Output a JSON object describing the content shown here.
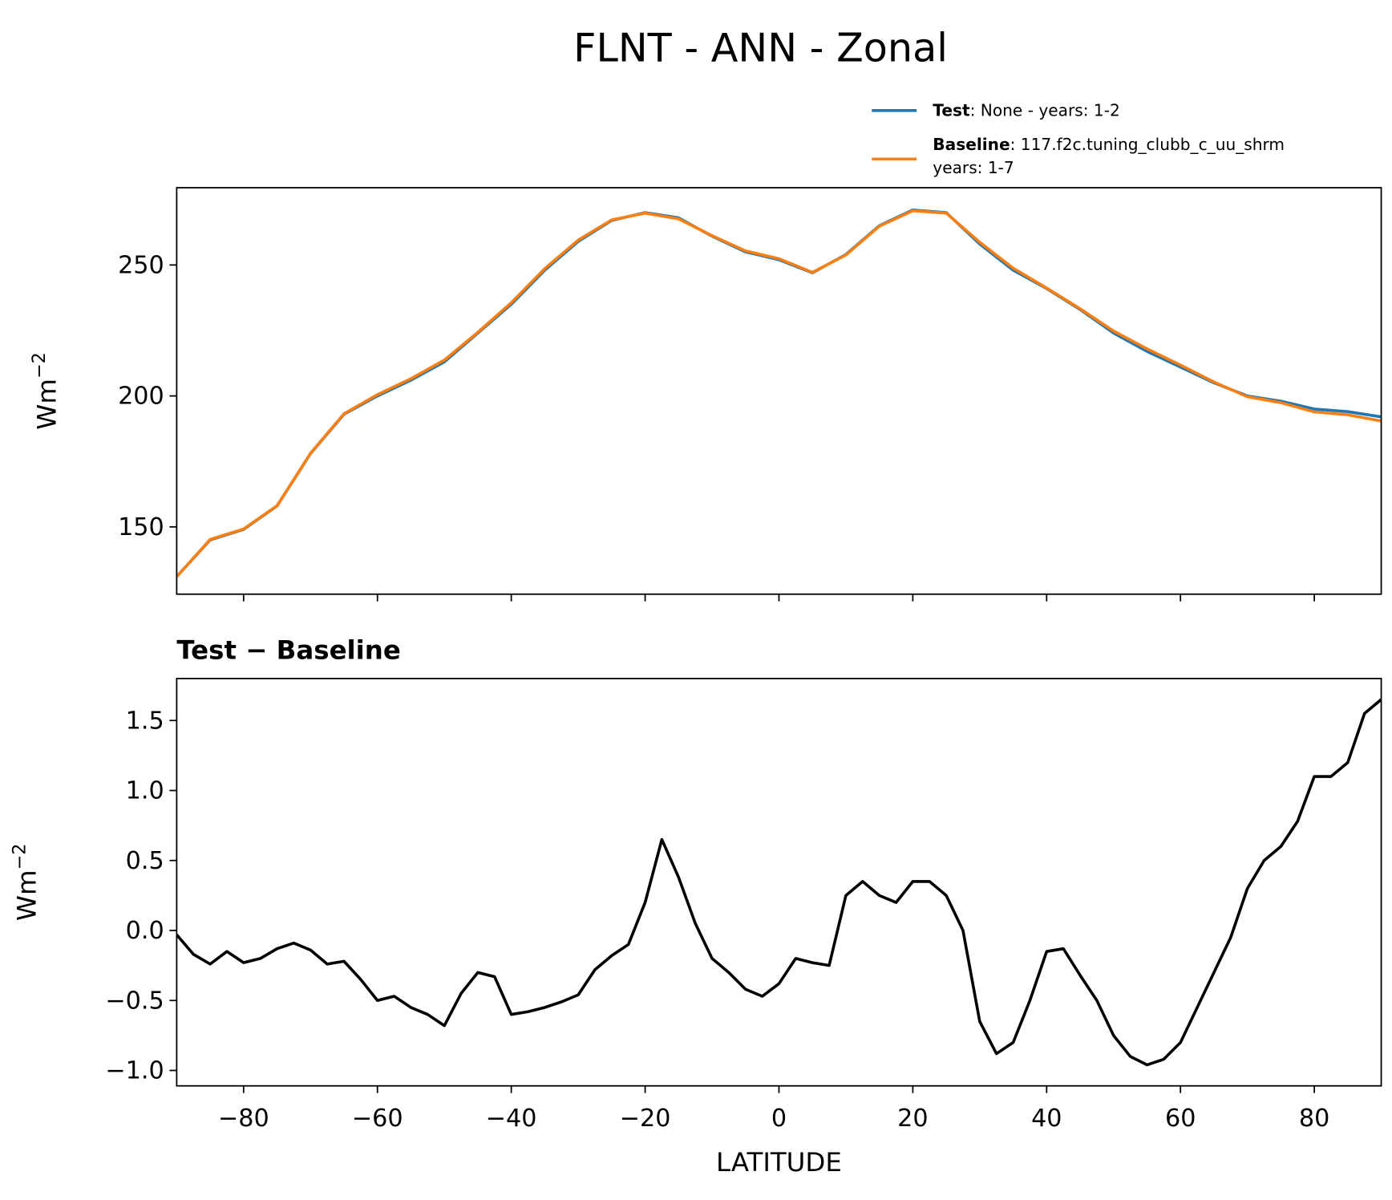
{
  "title": "FLNT - ANN - Zonal",
  "chart_data": [
    {
      "type": "line",
      "ylabel": {
        "base": "Wm",
        "sup": "−2"
      },
      "xlim": [
        -90,
        90
      ],
      "ylim": [
        124.3,
        279.5
      ],
      "yticks": [
        150,
        200,
        250
      ],
      "legend": "top-right-outside",
      "x": [
        -90,
        -85,
        -80,
        -75,
        -70,
        -65,
        -60,
        -55,
        -50,
        -45,
        -40,
        -35,
        -30,
        -25,
        -20,
        -15,
        -10,
        -5,
        0,
        5,
        10,
        15,
        20,
        25,
        30,
        35,
        40,
        45,
        50,
        55,
        60,
        65,
        70,
        75,
        80,
        85,
        90
      ],
      "series": [
        {
          "name": "Test",
          "detail": [
            ": None - years: 1-2"
          ],
          "color": "#1f77b4",
          "values": [
            131,
            145,
            149,
            158,
            178,
            193,
            200,
            206,
            213,
            224,
            235,
            248,
            259,
            267,
            270,
            268,
            261,
            255,
            252,
            247,
            254,
            265,
            271,
            270,
            258,
            248,
            241,
            233,
            224,
            217,
            211,
            205,
            200,
            198,
            195,
            194,
            192
          ]
        },
        {
          "name": "Baseline",
          "detail": [
            ": 117.f2c.tuning_clubb_c_uu_shrm",
            "years: 1-7"
          ],
          "color": "#ff7f0e",
          "values": [
            131.0,
            145.2,
            149.2,
            158.1,
            178.1,
            193.2,
            200.5,
            206.6,
            213.7,
            224.3,
            235.6,
            248.6,
            259.5,
            267.2,
            269.8,
            267.6,
            261.2,
            255.4,
            252.4,
            247.2,
            253.8,
            264.8,
            270.7,
            269.8,
            258.7,
            248.8,
            241.2,
            233.3,
            224.8,
            218.0,
            211.8,
            205.3,
            199.7,
            197.4,
            193.9,
            192.8,
            190.4
          ]
        }
      ]
    },
    {
      "type": "line",
      "title": "Test − Baseline",
      "xlabel": "LATITUDE",
      "ylabel": {
        "base": "Wm",
        "sup": "−2"
      },
      "xlim": [
        -90,
        90
      ],
      "ylim": [
        -1.11,
        1.8
      ],
      "xticks": [
        {
          "value": -80,
          "label": "−80"
        },
        {
          "value": -60,
          "label": "−60"
        },
        {
          "value": -40,
          "label": "−40"
        },
        {
          "value": -20,
          "label": "−20"
        },
        0,
        20,
        40,
        60,
        80
      ],
      "yticks": [
        {
          "value": -1.0,
          "label": "−1.0"
        },
        {
          "value": -0.5,
          "label": "−0.5"
        },
        {
          "value": 0.0,
          "label": "0.0"
        },
        0.5,
        {
          "value": 1.0,
          "label": "1.0"
        },
        1.5
      ],
      "x": [
        -90,
        -87.5,
        -85,
        -82.5,
        -80,
        -77.5,
        -75,
        -72.5,
        -70,
        -67.5,
        -65,
        -62.5,
        -60,
        -57.5,
        -55,
        -52.5,
        -50,
        -47.5,
        -45,
        -42.5,
        -40,
        -37.5,
        -35,
        -32.5,
        -30,
        -27.5,
        -25,
        -22.5,
        -20,
        -17.5,
        -15,
        -12.5,
        -10,
        -7.5,
        -5,
        -2.5,
        0,
        2.5,
        5,
        7.5,
        10,
        12.5,
        15,
        17.5,
        20,
        22.5,
        25,
        27.5,
        30,
        32.5,
        35,
        37.5,
        40,
        42.5,
        45,
        47.5,
        50,
        52.5,
        55,
        57.5,
        60,
        62.5,
        65,
        67.5,
        70,
        72.5,
        75,
        77.5,
        80,
        82.5,
        85,
        87.5,
        90
      ],
      "series": [
        {
          "color": "#000000",
          "values": [
            -0.03,
            -0.17,
            -0.24,
            -0.15,
            -0.23,
            -0.2,
            -0.13,
            -0.09,
            -0.14,
            -0.24,
            -0.22,
            -0.35,
            -0.5,
            -0.47,
            -0.55,
            -0.6,
            -0.68,
            -0.45,
            -0.3,
            -0.33,
            -0.6,
            -0.58,
            -0.55,
            -0.51,
            -0.46,
            -0.28,
            -0.18,
            -0.1,
            0.2,
            0.65,
            0.38,
            0.05,
            -0.2,
            -0.3,
            -0.42,
            -0.47,
            -0.38,
            -0.2,
            -0.23,
            -0.25,
            0.25,
            0.35,
            0.25,
            0.2,
            0.35,
            0.35,
            0.25,
            0.0,
            -0.65,
            -0.88,
            -0.8,
            -0.5,
            -0.15,
            -0.13,
            -0.32,
            -0.5,
            -0.75,
            -0.9,
            -0.96,
            -0.92,
            -0.8,
            -0.55,
            -0.3,
            -0.05,
            0.3,
            0.5,
            0.6,
            0.78,
            1.1,
            1.1,
            1.2,
            1.55,
            1.65
          ]
        }
      ]
    }
  ]
}
